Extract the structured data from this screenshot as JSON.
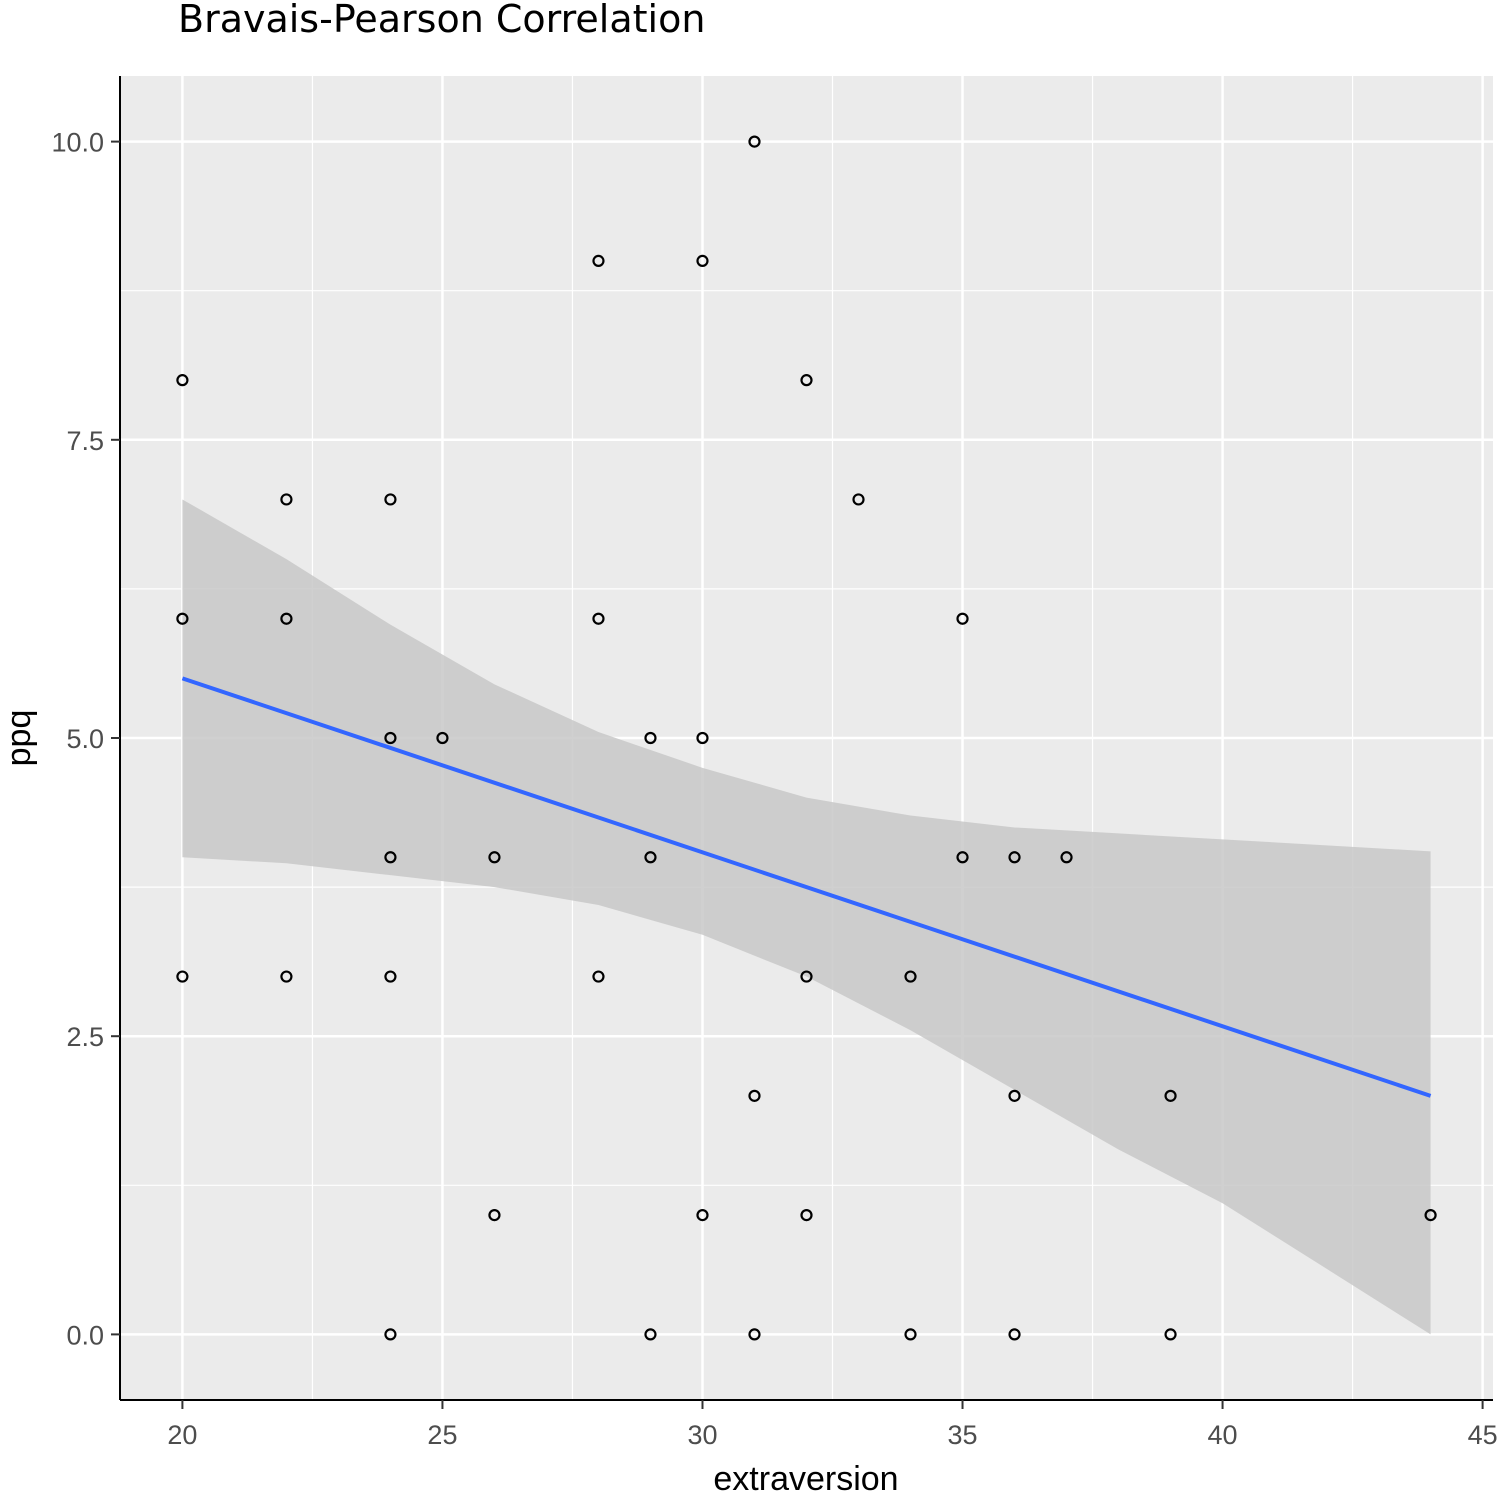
{
  "chart_data": {
    "type": "scatter",
    "title": "Bravais-Pearson Correlation",
    "xlabel": "extraversion",
    "ylabel": "ppq",
    "xlim": [
      18.8,
      45.2
    ],
    "ylim": [
      -0.55,
      10.55
    ],
    "x_ticks": [
      20,
      25,
      30,
      35,
      40,
      45
    ],
    "x_tick_labels": [
      "20",
      "25",
      "30",
      "35",
      "40",
      "45"
    ],
    "y_ticks": [
      0,
      2.5,
      5,
      7.5,
      10
    ],
    "y_tick_labels": [
      "0.0",
      "2.5",
      "5.0",
      "7.5",
      "10.0"
    ],
    "grid": true,
    "colors": {
      "panel": "#ebebeb",
      "grid": "#ffffff",
      "points": "#000000",
      "trend_line": "#3366ff",
      "confidence_band": "#c8c8c8"
    },
    "points": [
      {
        "x": 20,
        "y": 8
      },
      {
        "x": 20,
        "y": 6
      },
      {
        "x": 20,
        "y": 3
      },
      {
        "x": 22,
        "y": 7
      },
      {
        "x": 22,
        "y": 6
      },
      {
        "x": 22,
        "y": 3
      },
      {
        "x": 24,
        "y": 7
      },
      {
        "x": 24,
        "y": 5
      },
      {
        "x": 24,
        "y": 4
      },
      {
        "x": 24,
        "y": 3
      },
      {
        "x": 24,
        "y": 0
      },
      {
        "x": 25,
        "y": 5
      },
      {
        "x": 26,
        "y": 4
      },
      {
        "x": 26,
        "y": 1
      },
      {
        "x": 28,
        "y": 9
      },
      {
        "x": 28,
        "y": 6
      },
      {
        "x": 28,
        "y": 3
      },
      {
        "x": 29,
        "y": 5
      },
      {
        "x": 29,
        "y": 4
      },
      {
        "x": 29,
        "y": 0
      },
      {
        "x": 30,
        "y": 9
      },
      {
        "x": 30,
        "y": 5
      },
      {
        "x": 30,
        "y": 1
      },
      {
        "x": 31,
        "y": 10
      },
      {
        "x": 31,
        "y": 2
      },
      {
        "x": 31,
        "y": 0
      },
      {
        "x": 32,
        "y": 8
      },
      {
        "x": 32,
        "y": 3
      },
      {
        "x": 32,
        "y": 1
      },
      {
        "x": 33,
        "y": 7
      },
      {
        "x": 34,
        "y": 3
      },
      {
        "x": 34,
        "y": 0
      },
      {
        "x": 35,
        "y": 6
      },
      {
        "x": 35,
        "y": 4
      },
      {
        "x": 36,
        "y": 4
      },
      {
        "x": 36,
        "y": 2
      },
      {
        "x": 36,
        "y": 0
      },
      {
        "x": 37,
        "y": 4
      },
      {
        "x": 39,
        "y": 2
      },
      {
        "x": 39,
        "y": 0
      },
      {
        "x": 44,
        "y": 1
      }
    ],
    "trend_line": {
      "x": [
        20,
        44
      ],
      "y": [
        5.5,
        2.0
      ]
    },
    "confidence_band": {
      "x": [
        20,
        22,
        24,
        26,
        28,
        30,
        32,
        34,
        36,
        38,
        40,
        42,
        44
      ],
      "upper": [
        7.0,
        6.5,
        5.95,
        5.45,
        5.05,
        4.75,
        4.5,
        4.35,
        4.25,
        4.2,
        4.15,
        4.1,
        4.05
      ],
      "lower": [
        4.0,
        3.95,
        3.85,
        3.75,
        3.6,
        3.35,
        3.0,
        2.55,
        2.05,
        1.55,
        1.1,
        0.55,
        0.0
      ]
    }
  }
}
